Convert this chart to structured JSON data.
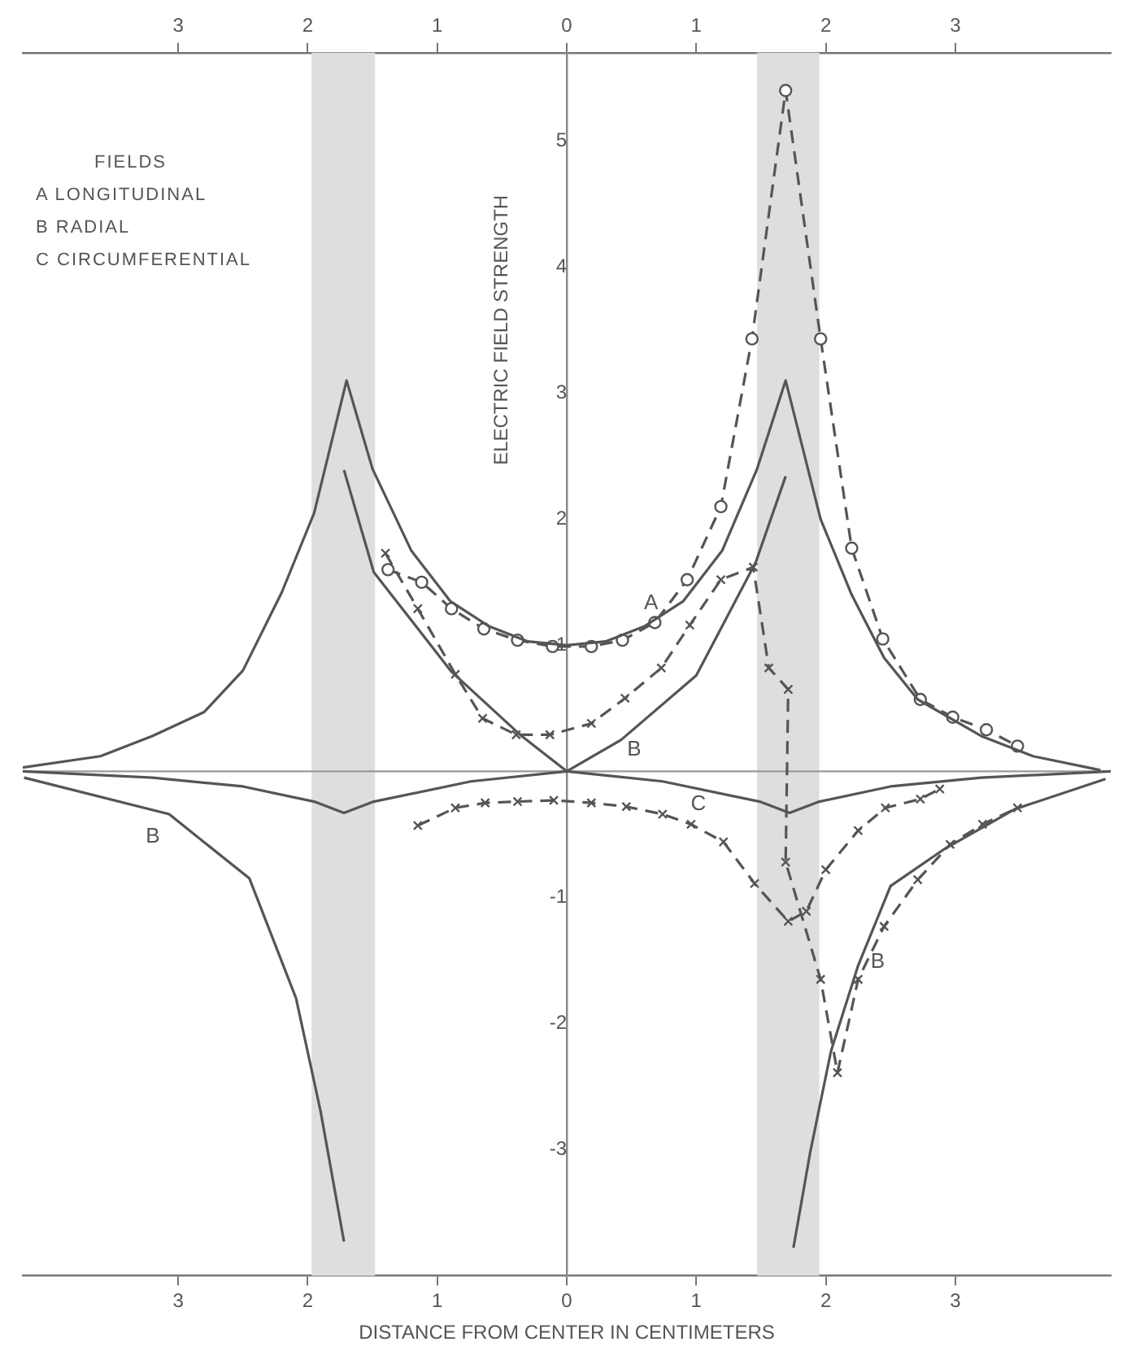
{
  "chart_data": {
    "type": "line",
    "xlabel": "DISTANCE FROM CENTER IN CENTIMETERS",
    "ylabel": "ELECTRIC FIELD STRENGTH",
    "xlim": [
      -4.2,
      4.2
    ],
    "ylim": [
      -4.0,
      5.7
    ],
    "xticks": [
      {
        "value": -3,
        "label": "3"
      },
      {
        "value": -2,
        "label": "2"
      },
      {
        "value": -1,
        "label": "1"
      },
      0,
      1,
      2,
      3
    ],
    "x2lim": [
      -4.2,
      4.2
    ],
    "x2ticks": [
      {
        "value": -3,
        "label": "3"
      },
      {
        "value": -2,
        "label": "2"
      },
      {
        "value": -1,
        "label": "1"
      },
      0,
      1,
      2,
      3
    ],
    "yticks": [
      -3,
      -2,
      -1,
      1,
      2,
      3,
      4,
      5
    ],
    "legend": false,
    "ref_lines": [
      {
        "axis": "y",
        "value": 0,
        "color": "#999999"
      }
    ],
    "bands": [
      {
        "axis": "x",
        "from": -1.97,
        "to": -1.48,
        "color": "#dedede"
      },
      {
        "axis": "x",
        "from": 1.47,
        "to": 1.95,
        "color": "#dedede"
      }
    ],
    "series": [
      {
        "type": "line",
        "name": "A",
        "color": "#555555",
        "marker": "none",
        "line_style": "solid",
        "x": [
          -4.2,
          -3.6,
          -3.2,
          -2.8,
          -2.5,
          -2.2,
          -1.95,
          -1.7,
          -1.5,
          -1.2,
          -0.9,
          -0.6,
          -0.3,
          0,
          0.3,
          0.6,
          0.9,
          1.2,
          1.47,
          1.69,
          1.96,
          2.2,
          2.45,
          2.71,
          3.2,
          3.6,
          4.12
        ],
        "values": [
          0.03,
          0.12,
          0.28,
          0.47,
          0.8,
          1.42,
          2.05,
          3.1,
          2.4,
          1.75,
          1.35,
          1.15,
          1.03,
          1.0,
          1.03,
          1.15,
          1.35,
          1.75,
          2.4,
          3.1,
          2.0,
          1.4,
          0.9,
          0.57,
          0.28,
          0.12,
          0.01
        ]
      },
      {
        "type": "line",
        "color": "#555555",
        "marker": "circle",
        "line_style": "dashed",
        "x": [
          -1.38,
          -1.12,
          -0.89,
          -0.64,
          -0.38,
          -0.11,
          0.19,
          0.43,
          0.68,
          0.93,
          1.19,
          1.43,
          1.69,
          1.96,
          2.2,
          2.44,
          2.73,
          2.98,
          3.24,
          3.48
        ],
        "values": [
          1.6,
          1.5,
          1.29,
          1.13,
          1.04,
          0.99,
          0.99,
          1.04,
          1.18,
          1.52,
          2.1,
          3.43,
          5.4,
          3.43,
          1.77,
          1.05,
          0.57,
          0.43,
          0.33,
          0.2
        ]
      },
      {
        "type": "line",
        "name": "B",
        "color": "#555555",
        "marker": "none",
        "line_style": "solid",
        "x": [
          -4.19,
          -3.07,
          -2.45,
          -2.09,
          -1.9,
          -1.72
        ],
        "values": [
          -0.05,
          -0.34,
          -0.85,
          -1.8,
          -2.7,
          -3.73
        ]
      },
      {
        "type": "line",
        "name": "B",
        "color": "#555555",
        "marker": "none",
        "line_style": "solid",
        "x": [
          -1.72,
          -1.49,
          -0.89,
          -0.36,
          0,
          0.42,
          1.0,
          1.46,
          1.69
        ],
        "values": [
          2.39,
          1.58,
          0.79,
          0.29,
          0,
          0.25,
          0.76,
          1.66,
          2.34
        ]
      },
      {
        "type": "line",
        "name": "B",
        "color": "#555555",
        "marker": "none",
        "line_style": "solid",
        "x": [
          1.75,
          1.88,
          2.04,
          2.25,
          2.5,
          2.91,
          3.46,
          4.16
        ],
        "values": [
          -3.78,
          -3.02,
          -2.22,
          -1.54,
          -0.91,
          -0.62,
          -0.3,
          -0.06
        ]
      },
      {
        "type": "line",
        "color": "#555555",
        "marker": "cross",
        "line_style": "dashed",
        "x": [
          -1.4,
          -1.15,
          -0.86,
          -0.65,
          -0.39,
          -0.13,
          0.19,
          0.45,
          0.73,
          0.95,
          1.19,
          1.44,
          1.56,
          1.71,
          1.69,
          1.96,
          2.09,
          2.25,
          2.45,
          2.71,
          2.96,
          3.21,
          3.48
        ],
        "values": [
          1.73,
          1.29,
          0.77,
          0.42,
          0.29,
          0.29,
          0.38,
          0.58,
          0.82,
          1.16,
          1.52,
          1.62,
          0.82,
          0.65,
          -0.72,
          -1.65,
          -2.39,
          -1.65,
          -1.23,
          -0.86,
          -0.58,
          -0.42,
          -0.29
        ]
      },
      {
        "type": "line",
        "name": "C",
        "color": "#555555",
        "marker": "none",
        "line_style": "solid",
        "x": [
          -4.2,
          -3.2,
          -2.5,
          -1.95,
          -1.72,
          -1.49,
          -0.74,
          0,
          0.74,
          1.49,
          1.72,
          1.95,
          2.5,
          3.2,
          4.2
        ],
        "values": [
          0,
          -0.05,
          -0.12,
          -0.24,
          -0.33,
          -0.24,
          -0.08,
          0,
          -0.08,
          -0.24,
          -0.33,
          -0.24,
          -0.12,
          -0.05,
          0
        ]
      },
      {
        "type": "line",
        "color": "#555555",
        "marker": "cross",
        "line_style": "dashed",
        "x": [
          -1.15,
          -0.86,
          -0.63,
          -0.38,
          -0.1,
          0.19,
          0.46,
          0.74,
          0.96,
          1.21,
          1.45,
          1.71,
          1.85,
          2.0,
          2.25,
          2.46,
          2.73,
          2.88
        ],
        "values": [
          -0.43,
          -0.29,
          -0.25,
          -0.24,
          -0.23,
          -0.25,
          -0.28,
          -0.34,
          -0.42,
          -0.56,
          -0.89,
          -1.19,
          -1.11,
          -0.78,
          -0.47,
          -0.29,
          -0.22,
          -0.14
        ]
      }
    ],
    "annotations": [
      "FIELDS",
      "A  LONGITUDINAL",
      "B  RADIAL",
      "C  CIRCUMFERENTIAL"
    ]
  }
}
